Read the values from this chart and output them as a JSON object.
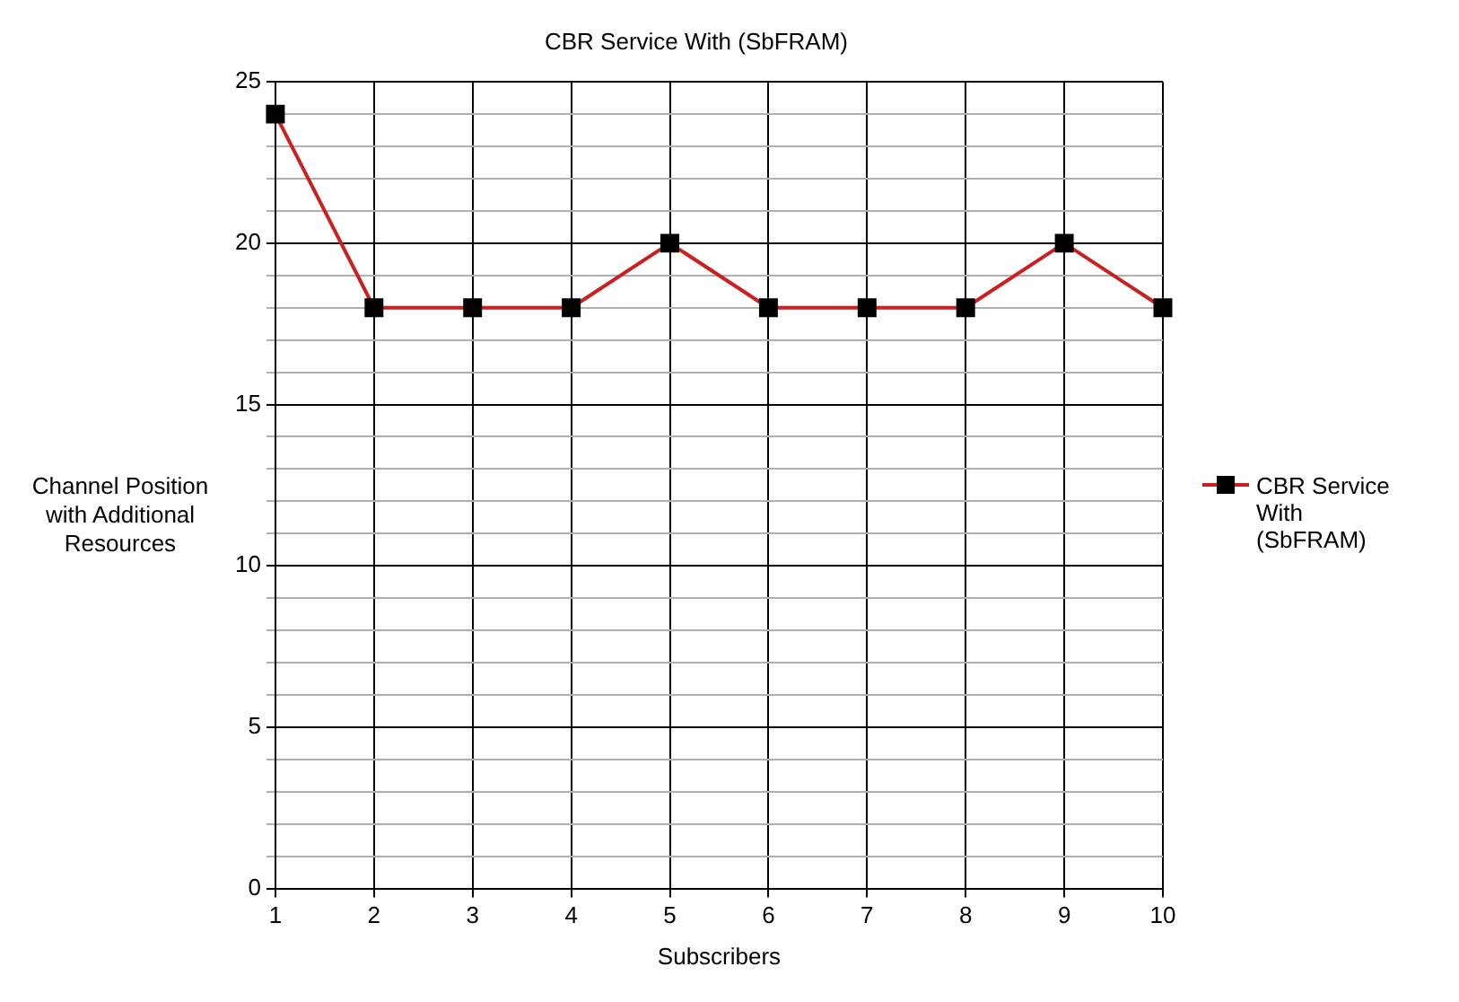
{
  "chart_data": {
    "type": "line",
    "title": "CBR Service With (SbFRAM)",
    "xlabel": "Subscribers",
    "ylabel": "Channel Position with Additional Resources",
    "x": [
      1,
      2,
      3,
      4,
      5,
      6,
      7,
      8,
      9,
      10
    ],
    "series": [
      {
        "name": "CBR Service With (SbFRAM)",
        "color": "#cc1f1f",
        "values": [
          24,
          18,
          18,
          18,
          20,
          18,
          18,
          18,
          20,
          18
        ]
      }
    ],
    "xlim": [
      1,
      10
    ],
    "xticks": [
      1,
      2,
      3,
      4,
      5,
      6,
      7,
      8,
      9,
      10
    ],
    "ylim": [
      0,
      25
    ],
    "yticks": [
      0,
      {
        "value": 1,
        "label": null
      },
      {
        "value": 2,
        "label": null
      },
      {
        "value": 3,
        "label": null
      },
      {
        "value": 4,
        "label": null
      },
      5,
      {
        "value": 6,
        "label": null
      },
      {
        "value": 7,
        "label": null
      },
      {
        "value": 8,
        "label": null
      },
      {
        "value": 9,
        "label": null
      },
      10,
      {
        "value": 11,
        "label": null
      },
      {
        "value": 12,
        "label": null
      },
      {
        "value": 13,
        "label": null
      },
      {
        "value": 14,
        "label": null
      },
      15,
      {
        "value": 16,
        "label": null
      },
      {
        "value": 17,
        "label": null
      },
      {
        "value": 18,
        "label": null
      },
      {
        "value": 19,
        "label": null
      },
      20,
      {
        "value": 21,
        "label": null
      },
      {
        "value": 22,
        "label": null
      },
      {
        "value": 23,
        "label": null
      },
      {
        "value": 24,
        "label": null
      },
      25
    ],
    "grid": true,
    "legend": "right",
    "marker": "square",
    "line_style": "solid"
  }
}
